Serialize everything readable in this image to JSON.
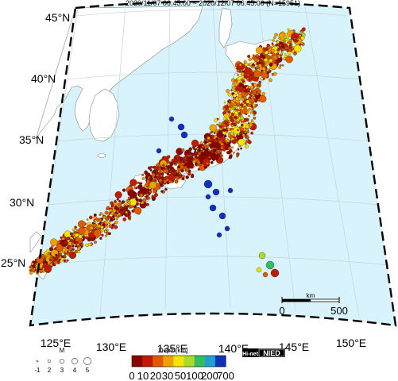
{
  "header": {
    "title": "2020/11/07 06:45:00 ~ 2020/12/07 06:45:00 (N=15951)"
  },
  "lat_labels": [
    "45°N",
    "40°N",
    "35°N",
    "30°N",
    "25°N"
  ],
  "lon_labels": [
    "125°E",
    "130°E",
    "135°E",
    "140°E",
    "145°E",
    "150°E"
  ],
  "scale_bar": {
    "unit": "km",
    "start": "0",
    "end": "500"
  },
  "magnitude_legend": {
    "title": "M",
    "labels": [
      "-1",
      "2",
      "3",
      "4",
      "5"
    ]
  },
  "depth_legend": {
    "title": "Depth[km]",
    "labels": [
      "0",
      "10",
      "20",
      "30",
      "50",
      "100",
      "200",
      "700"
    ],
    "colors": [
      "#8b0000",
      "#c01a00",
      "#e05a00",
      "#f0a000",
      "#f5e400",
      "#a8dc28",
      "#30c060",
      "#20a0d0",
      "#1030c0"
    ]
  },
  "credit": {
    "hinet_label": "Hi-net",
    "nied_label": "NIED"
  },
  "colors": {
    "sea": "#d8f3fb",
    "land": "#ffffff",
    "frame": "#000000"
  }
}
